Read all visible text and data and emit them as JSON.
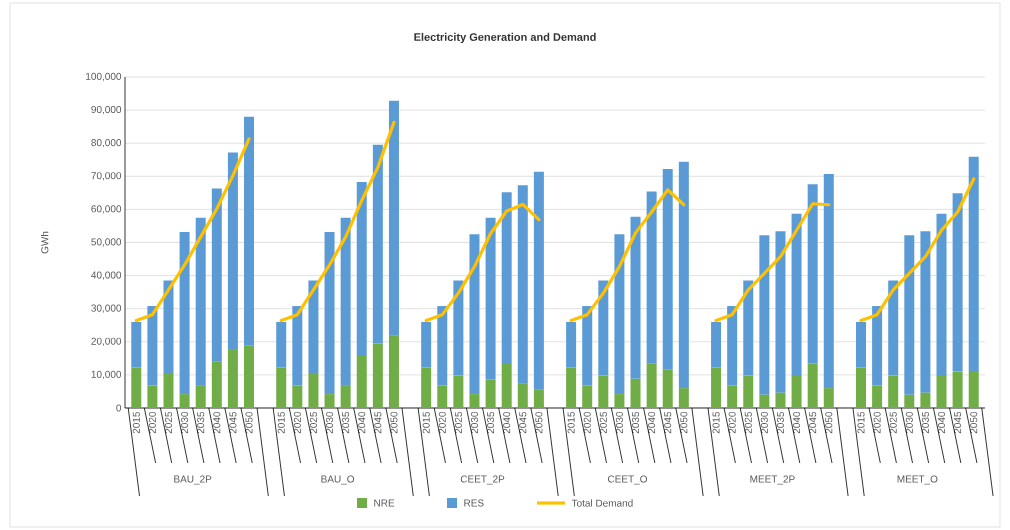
{
  "chart_data": {
    "type": "bar",
    "stacked": true,
    "title": "Electricity Generation and Demand",
    "ylabel": "GWh",
    "categories": [
      "2015",
      "2020",
      "2025",
      "2030",
      "2035",
      "2040",
      "2045",
      "2050",
      null,
      "2015",
      "2020",
      "2025",
      "2030",
      "2035",
      "2040",
      "2045",
      "2050",
      null,
      "2015",
      "2020",
      "2025",
      "2030",
      "2035",
      "2040",
      "2045",
      "2050",
      null,
      "2015",
      "2020",
      "2025",
      "2030",
      "2035",
      "2040",
      "2045",
      "2050",
      null,
      "2015",
      "2020",
      "2025",
      "2030",
      "2035",
      "2040",
      "2045",
      "2050",
      null,
      "2015",
      "2020",
      "2025",
      "2030",
      "2035",
      "2040",
      "2045",
      "2050"
    ],
    "annotations": [
      "BAU_2P",
      "BAU_O",
      "CEET_2P",
      "CEET_O",
      "MEET_2P",
      "MEET_O"
    ],
    "series": [
      {
        "name": "NRE",
        "color": "#70ad47",
        "values": [
          12200,
          6800,
          10600,
          4200,
          6900,
          14000,
          17800,
          18800,
          null,
          12200,
          6800,
          10600,
          4200,
          6900,
          16000,
          19500,
          22000,
          null,
          12200,
          6800,
          9800,
          4200,
          8500,
          13300,
          7500,
          5700,
          null,
          12200,
          6800,
          9800,
          4200,
          8800,
          13400,
          11700,
          6000,
          null,
          12200,
          6800,
          9800,
          4000,
          4600,
          9700,
          13500,
          6000,
          null,
          12200,
          6800,
          9800,
          4000,
          4600,
          9700,
          11000,
          11200
        ]
      },
      {
        "name": "RES",
        "color": "#5b9bd5",
        "values": [
          13800,
          24000,
          27900,
          49000,
          50600,
          52300,
          59400,
          69200,
          null,
          13800,
          24000,
          27900,
          49000,
          50600,
          52300,
          60000,
          70800,
          null,
          13800,
          24000,
          28700,
          48300,
          49000,
          51900,
          59800,
          65700,
          null,
          13800,
          24000,
          28700,
          48300,
          49000,
          52000,
          60500,
          68400,
          null,
          13800,
          24000,
          28700,
          48200,
          48800,
          49000,
          54100,
          64700,
          null,
          13800,
          24000,
          28700,
          48200,
          48800,
          49000,
          53900,
          64700
        ]
      },
      {
        "name": "Total Demand",
        "type": "line",
        "color": "#ffc000",
        "values": [
          26400,
          28200,
          35700,
          43200,
          51700,
          60200,
          70200,
          81300,
          null,
          26400,
          28200,
          35700,
          43200,
          51700,
          62700,
          72700,
          86300,
          null,
          26400,
          28200,
          34700,
          42700,
          52700,
          59500,
          61500,
          56900,
          null,
          26400,
          28200,
          34700,
          42700,
          52900,
          59200,
          65900,
          61400,
          null,
          26400,
          28200,
          35700,
          40700,
          45700,
          53700,
          61700,
          61400,
          null,
          26400,
          28200,
          35700,
          40700,
          45700,
          53700,
          59200,
          69200
        ]
      }
    ],
    "ylim": [
      0,
      100000
    ],
    "yticks": [
      0,
      {
        "value": 10000,
        "label": "10,000"
      },
      {
        "value": 20000,
        "label": "20,000"
      },
      {
        "value": 30000,
        "label": "30,000"
      },
      {
        "value": 40000,
        "label": "40,000"
      },
      {
        "value": 50000,
        "label": "50,000"
      },
      {
        "value": 60000,
        "label": "60,000"
      },
      {
        "value": 70000,
        "label": "70,000"
      },
      {
        "value": 80000,
        "label": "80,000"
      },
      {
        "value": 90000,
        "label": "90,000"
      },
      {
        "value": 100000,
        "label": "100,000"
      }
    ],
    "grid": "y",
    "legend": "bottom",
    "marker": "none",
    "line_style": "solid"
  }
}
